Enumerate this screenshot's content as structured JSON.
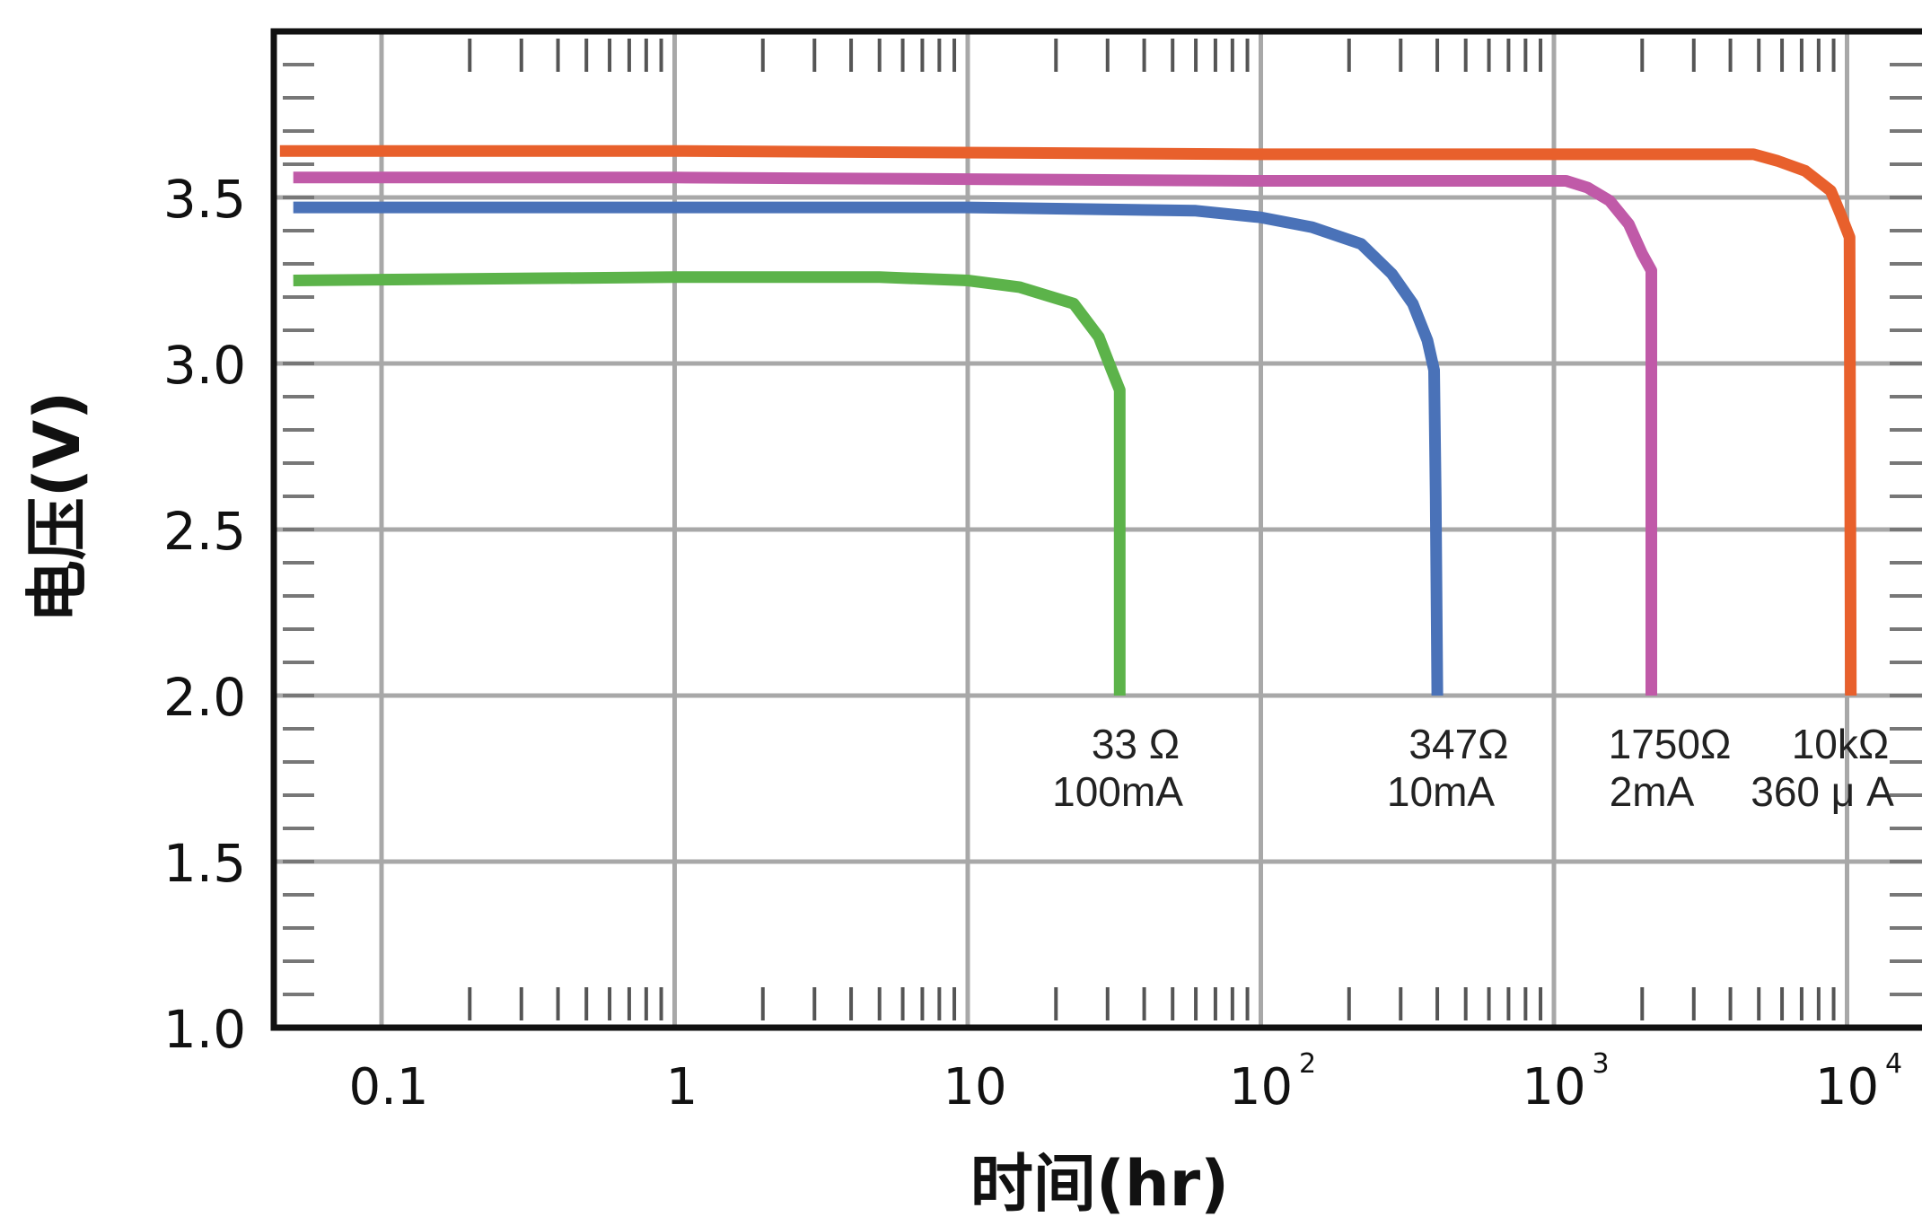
{
  "chart_data": {
    "type": "line",
    "title": "",
    "xlabel": "时间(hr)",
    "ylabel": "电压(V)",
    "xscale": "log",
    "xlim": [
      0.045,
      30000
    ],
    "ylim": [
      1.0,
      4.0
    ],
    "grid": true,
    "x_tick_labels": [
      {
        "value": 0.1,
        "base": "0.1",
        "exp": ""
      },
      {
        "value": 1,
        "base": "1",
        "exp": ""
      },
      {
        "value": 10,
        "base": "10",
        "exp": ""
      },
      {
        "value": 100,
        "base": "10",
        "exp": "2"
      },
      {
        "value": 1000,
        "base": "10",
        "exp": "3"
      },
      {
        "value": 10000,
        "base": "10",
        "exp": "4"
      }
    ],
    "y_tick_labels": [
      {
        "value": 3.5,
        "label": "3.5"
      },
      {
        "value": 3.0,
        "label": "3.0"
      },
      {
        "value": 2.5,
        "label": "2.5"
      },
      {
        "value": 2.0,
        "label": "2.0"
      },
      {
        "value": 1.5,
        "label": "1.5"
      },
      {
        "value": 1.0,
        "label": "1.0"
      }
    ],
    "series": [
      {
        "resistance": "33Ω",
        "current": "100mA",
        "color": "#5cb34a",
        "points": [
          [
            0.05,
            3.25
          ],
          [
            1,
            3.26
          ],
          [
            5,
            3.26
          ],
          [
            10,
            3.25
          ],
          [
            15,
            3.23
          ],
          [
            23,
            3.18
          ],
          [
            28,
            3.08
          ],
          [
            31,
            2.98
          ],
          [
            33,
            2.92
          ],
          [
            33,
            2.0
          ]
        ]
      },
      {
        "resistance": "347Ω",
        "current": "10mA",
        "color": "#4a72b8",
        "points": [
          [
            0.05,
            3.47
          ],
          [
            1,
            3.47
          ],
          [
            10,
            3.47
          ],
          [
            60,
            3.46
          ],
          [
            100,
            3.44
          ],
          [
            150,
            3.41
          ],
          [
            220,
            3.36
          ],
          [
            280,
            3.27
          ],
          [
            330,
            3.18
          ],
          [
            370,
            3.07
          ],
          [
            390,
            2.98
          ],
          [
            395,
            2.6
          ],
          [
            400,
            2.0
          ]
        ]
      },
      {
        "resistance": "1750Ω",
        "current": "2mA",
        "color": "#c05aa8",
        "points": [
          [
            0.05,
            3.56
          ],
          [
            1,
            3.56
          ],
          [
            100,
            3.55
          ],
          [
            1100,
            3.55
          ],
          [
            1300,
            3.53
          ],
          [
            1550,
            3.49
          ],
          [
            1800,
            3.42
          ],
          [
            2000,
            3.33
          ],
          [
            2150,
            3.28
          ],
          [
            2150,
            2.0
          ]
        ]
      },
      {
        "resistance": "10kΩ",
        "current": "360μA",
        "color": "#e8602c",
        "points": [
          [
            0.045,
            3.64
          ],
          [
            1,
            3.64
          ],
          [
            100,
            3.63
          ],
          [
            1000,
            3.63
          ],
          [
            4800,
            3.63
          ],
          [
            5800,
            3.61
          ],
          [
            7200,
            3.58
          ],
          [
            8800,
            3.52
          ],
          [
            9500,
            3.45
          ],
          [
            10200,
            3.38
          ],
          [
            10300,
            2.0
          ]
        ]
      }
    ],
    "labels": [
      {
        "resistance": "33 Ω",
        "current": "100mA"
      },
      {
        "resistance": "347Ω",
        "current": "10mA"
      },
      {
        "resistance": "1750Ω",
        "current": "2mA"
      },
      {
        "resistance": "10kΩ",
        "current": "360 μ A"
      }
    ]
  }
}
